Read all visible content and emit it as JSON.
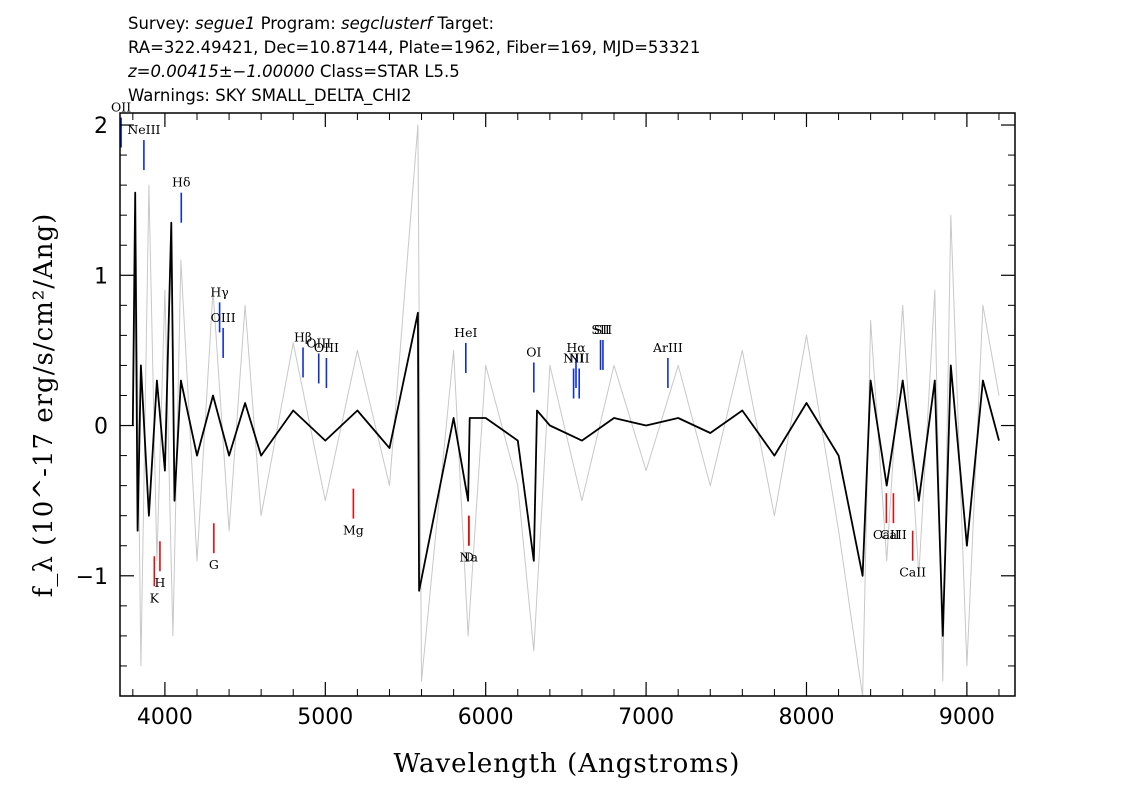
{
  "header": {
    "survey_label": "Survey:",
    "survey": "segue1",
    "program_label": "Program:",
    "program": "segclusterf",
    "target_label": "Target:",
    "line2": "RA=322.49421, Dec=10.87144, Plate=1962, Fiber=169, MJD=53321",
    "redshift": "z=0.00415±−1.00000",
    "class_text": "Class=STAR L5.5",
    "warnings": "Warnings: SKY SMALL_DELTA_CHI2"
  },
  "chart_data": {
    "type": "line",
    "xlabel": "Wavelength (Angstroms)",
    "ylabel": "f_λ (10^-17 erg/s/cm²/Ang)",
    "xlim": [
      3720,
      9300
    ],
    "ylim": [
      -1.8,
      2.08
    ],
    "x_ticks": [
      {
        "value": 4000,
        "label": "4000"
      },
      {
        "value": 5000,
        "label": "5000"
      },
      {
        "value": 6000,
        "label": "6000"
      },
      {
        "value": 7000,
        "label": "7000"
      },
      {
        "value": 8000,
        "label": "8000"
      },
      {
        "value": 9000,
        "label": "9000"
      }
    ],
    "y_ticks": [
      {
        "value": -1,
        "label": "−1"
      },
      {
        "value": 0,
        "label": "0"
      },
      {
        "value": 1,
        "label": "1"
      },
      {
        "value": 2,
        "label": "2"
      }
    ],
    "series": [
      {
        "color": "#c8c8c8",
        "x": [
          3800,
          3820,
          3850,
          3900,
          3950,
          4000,
          4050,
          4100,
          4200,
          4300,
          4400,
          4500,
          4600,
          4800,
          5000,
          5200,
          5400,
          5577,
          5600,
          5800,
          5890,
          6000,
          6200,
          6300,
          6400,
          6600,
          6800,
          7000,
          7200,
          7400,
          7600,
          7800,
          8000,
          8200,
          8350,
          8400,
          8500,
          8600,
          8700,
          8800,
          8850,
          8900,
          9000,
          9100,
          9200
        ],
        "y": [
          0.0,
          1.2,
          -1.6,
          1.6,
          -0.9,
          0.9,
          -1.4,
          1.1,
          -0.9,
          0.9,
          -0.7,
          0.8,
          -0.6,
          0.55,
          -0.5,
          0.5,
          -0.4,
          2.0,
          -1.7,
          0.5,
          -1.4,
          0.4,
          -0.4,
          -1.5,
          0.4,
          -0.5,
          0.4,
          -0.3,
          0.4,
          -0.4,
          0.5,
          -0.6,
          0.6,
          -0.7,
          -1.8,
          0.7,
          -0.9,
          0.8,
          -1.0,
          0.9,
          -1.7,
          1.4,
          -1.6,
          0.8,
          0.2
        ]
      },
      {
        "color": "#000000",
        "x": [
          3800,
          3815,
          3830,
          3850,
          3900,
          3950,
          4000,
          4040,
          4060,
          4100,
          4200,
          4300,
          4400,
          4500,
          4600,
          4800,
          5000,
          5200,
          5400,
          5577,
          5585,
          5800,
          5890,
          5900,
          6000,
          6200,
          6300,
          6320,
          6400,
          6600,
          6800,
          7000,
          7200,
          7400,
          7600,
          7800,
          8000,
          8200,
          8350,
          8400,
          8500,
          8600,
          8700,
          8800,
          8850,
          8900,
          9000,
          9100,
          9200
        ],
        "y": [
          0.0,
          1.55,
          -0.7,
          0.4,
          -0.6,
          0.3,
          -0.3,
          1.35,
          -0.5,
          0.3,
          -0.2,
          0.2,
          -0.2,
          0.15,
          -0.2,
          0.1,
          -0.1,
          0.1,
          -0.15,
          0.75,
          -1.1,
          0.05,
          -0.5,
          0.05,
          0.05,
          -0.1,
          -0.9,
          0.1,
          0.0,
          -0.1,
          0.05,
          0.0,
          0.05,
          -0.05,
          0.1,
          -0.2,
          0.15,
          -0.2,
          -1.0,
          0.3,
          -0.4,
          0.3,
          -0.5,
          0.3,
          -1.4,
          0.4,
          -0.8,
          0.3,
          -0.1
        ]
      }
    ],
    "emission_lines": [
      {
        "label": "OII",
        "x": 3727,
        "y": 1.85
      },
      {
        "label": "NeIII",
        "x": 3869,
        "y": 1.7
      },
      {
        "label": "Hδ",
        "x": 4102,
        "y": 1.35
      },
      {
        "label": "Hγ",
        "x": 4341,
        "y": 0.62
      },
      {
        "label": "OIII",
        "x": 4363,
        "y": 0.45
      },
      {
        "label": "Hβ",
        "x": 4861,
        "y": 0.32
      },
      {
        "label": "OIII",
        "x": 4959,
        "y": 0.28
      },
      {
        "label": "OIII",
        "x": 5007,
        "y": 0.25
      },
      {
        "label": "HeI",
        "x": 5876,
        "y": 0.35
      },
      {
        "label": "OI",
        "x": 6300,
        "y": 0.22
      },
      {
        "label": "NII",
        "x": 6548,
        "y": 0.18
      },
      {
        "label": "Hα",
        "x": 6563,
        "y": 0.25
      },
      {
        "label": "NII",
        "x": 6583,
        "y": 0.18
      },
      {
        "label": "SII",
        "x": 6716,
        "y": 0.37
      },
      {
        "label": "SII",
        "x": 6731,
        "y": 0.37
      },
      {
        "label": "ArIII",
        "x": 7136,
        "y": 0.25
      }
    ],
    "absorption_lines": [
      {
        "label": "K",
        "x": 3934,
        "y": -0.87
      },
      {
        "label": "H",
        "x": 3969,
        "y": -0.77
      },
      {
        "label": "G",
        "x": 4305,
        "y": -0.65
      },
      {
        "label": "Mg",
        "x": 5175,
        "y": -0.42
      },
      {
        "label": "Na",
        "x": 5894,
        "y": -0.6
      },
      {
        "label": "D",
        "x": 5896,
        "y": -0.6
      },
      {
        "label": "CaII",
        "x": 8498,
        "y": -0.45
      },
      {
        "label": "CaII",
        "x": 8542,
        "y": -0.45
      },
      {
        "label": "CaII",
        "x": 8662,
        "y": -0.7
      }
    ]
  }
}
